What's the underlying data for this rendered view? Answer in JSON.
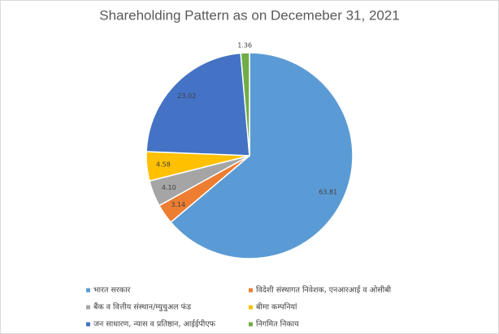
{
  "chart_data": {
    "type": "pie",
    "title": "Shareholding Pattern as on Decemeber 31, 2021",
    "categories": [
      "भारत सरकार",
      "विदेशी संस्थागत निवेशक, एनआरआई व ओसीबी",
      "बैंक व वित्तीय संस्थान/म्युचुअल फंड",
      "बीमा कम्पनियां",
      "जन साधारण, न्यास व प्रतिष्ठान, आईईपीएफ",
      "निगमित निकाय"
    ],
    "values": [
      63.81,
      3.14,
      4.1,
      4.58,
      23.02,
      1.36
    ],
    "value_labels": [
      "63.81",
      "3.14",
      "4.10",
      "4.58",
      "23.02",
      "1.36"
    ],
    "colors": [
      "#5b9bd5",
      "#ed7d31",
      "#a5a5a5",
      "#ffc000",
      "#4472c4",
      "#70ad47"
    ],
    "legend": "bottom"
  }
}
